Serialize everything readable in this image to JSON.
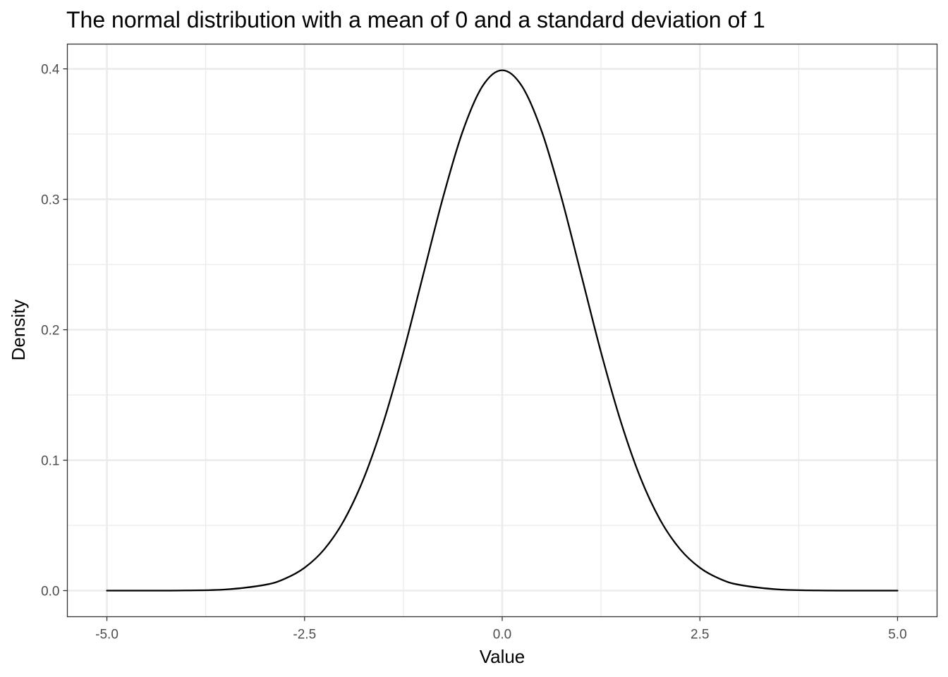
{
  "chart_data": {
    "type": "line",
    "title": "The normal distribution with a mean of 0 and a standard deviation of 1",
    "xlabel": "Value",
    "ylabel": "Density",
    "xlim": [
      -5.5,
      5.5
    ],
    "ylim": [
      -0.02,
      0.419
    ],
    "x_ticks": [
      -5.0,
      -2.5,
      0.0,
      2.5,
      5.0
    ],
    "x_tick_labels": [
      "-5.0",
      "-2.5",
      "0.0",
      "2.5",
      "5.0"
    ],
    "y_ticks": [
      0.0,
      0.1,
      0.2,
      0.3,
      0.4
    ],
    "y_tick_labels": [
      "0.0",
      "0.1",
      "0.2",
      "0.3",
      "0.4"
    ],
    "x_minor": [
      -3.75,
      -1.25,
      1.25,
      3.75
    ],
    "y_minor": [
      0.05,
      0.15,
      0.25,
      0.35
    ],
    "grid": true,
    "line_color": "#000000",
    "series": [
      {
        "x": [
          -5.0,
          -4.5,
          -4.0,
          -3.5,
          -3.0,
          -2.75,
          -2.5,
          -2.25,
          -2.0,
          -1.75,
          -1.5,
          -1.25,
          -1.0,
          -0.75,
          -0.5,
          -0.25,
          0.0,
          0.25,
          0.5,
          0.75,
          1.0,
          1.25,
          1.5,
          1.75,
          2.0,
          2.25,
          2.5,
          2.75,
          3.0,
          3.5,
          4.0,
          4.5,
          5.0
        ],
        "y": [
          1.5e-06,
          1.6e-05,
          0.000134,
          0.000873,
          0.004432,
          0.009094,
          0.017528,
          0.03174,
          0.053991,
          0.086277,
          0.129518,
          0.182649,
          0.241971,
          0.301137,
          0.352065,
          0.386668,
          0.398942,
          0.386668,
          0.352065,
          0.301137,
          0.241971,
          0.182649,
          0.129518,
          0.086277,
          0.053991,
          0.03174,
          0.017528,
          0.009094,
          0.004432,
          0.000873,
          0.000134,
          1.6e-05,
          1.5e-06
        ]
      }
    ]
  }
}
